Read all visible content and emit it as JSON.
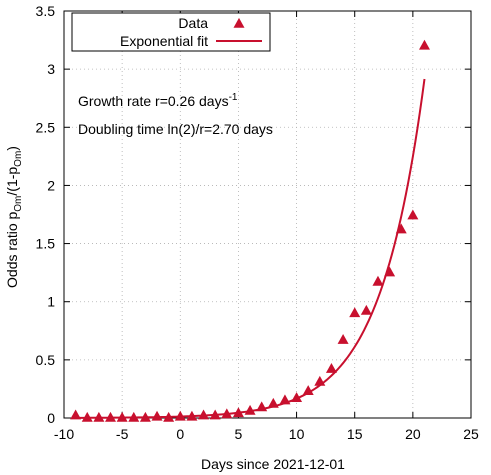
{
  "chart_data": {
    "type": "scatter",
    "xlabel": "Days since 2021-12-01",
    "ylabel": {
      "main": "Odds ratio p",
      "sub1": "Om",
      "mid": "/(1-p",
      "sub2": "Om",
      "end": ")"
    },
    "xlim": [
      -10,
      25
    ],
    "ylim": [
      0,
      3.5
    ],
    "xticks": [
      -10,
      -5,
      0,
      5,
      10,
      15,
      20,
      25
    ],
    "yticks": [
      0,
      0.5,
      1,
      1.5,
      2,
      2.5,
      3,
      3.5
    ],
    "grid": true,
    "legend_position": "top-left",
    "series": [
      {
        "name": "Data",
        "marker": "triangle",
        "color": "#c8102e",
        "x": [
          -9,
          -8,
          -7,
          -6,
          -5,
          -4,
          -3,
          -2,
          -1,
          0,
          1,
          2,
          3,
          4,
          5,
          6,
          7,
          8,
          9,
          10,
          11,
          12,
          13,
          14,
          15,
          16,
          17,
          18,
          19,
          20,
          21
        ],
        "y": [
          0.02,
          0.0,
          0.0,
          0.0,
          0.0,
          0.0,
          0.0,
          0.01,
          0.0,
          0.01,
          0.01,
          0.02,
          0.02,
          0.03,
          0.04,
          0.06,
          0.09,
          0.12,
          0.15,
          0.17,
          0.23,
          0.31,
          0.42,
          0.67,
          0.9,
          0.92,
          1.17,
          1.25,
          1.62,
          1.74,
          3.2
        ]
      },
      {
        "name": "Exponential fit",
        "line": true,
        "color": "#c8102e",
        "model": {
          "amplitude": 0.0124,
          "rate": 0.26
        },
        "x_range": [
          -9,
          21
        ]
      }
    ],
    "annotations": {
      "growth_main": "Growth rate r=0.26 days",
      "growth_sup": "-1",
      "doubling": "Doubling time ln(2)/r=2.70 days"
    }
  }
}
